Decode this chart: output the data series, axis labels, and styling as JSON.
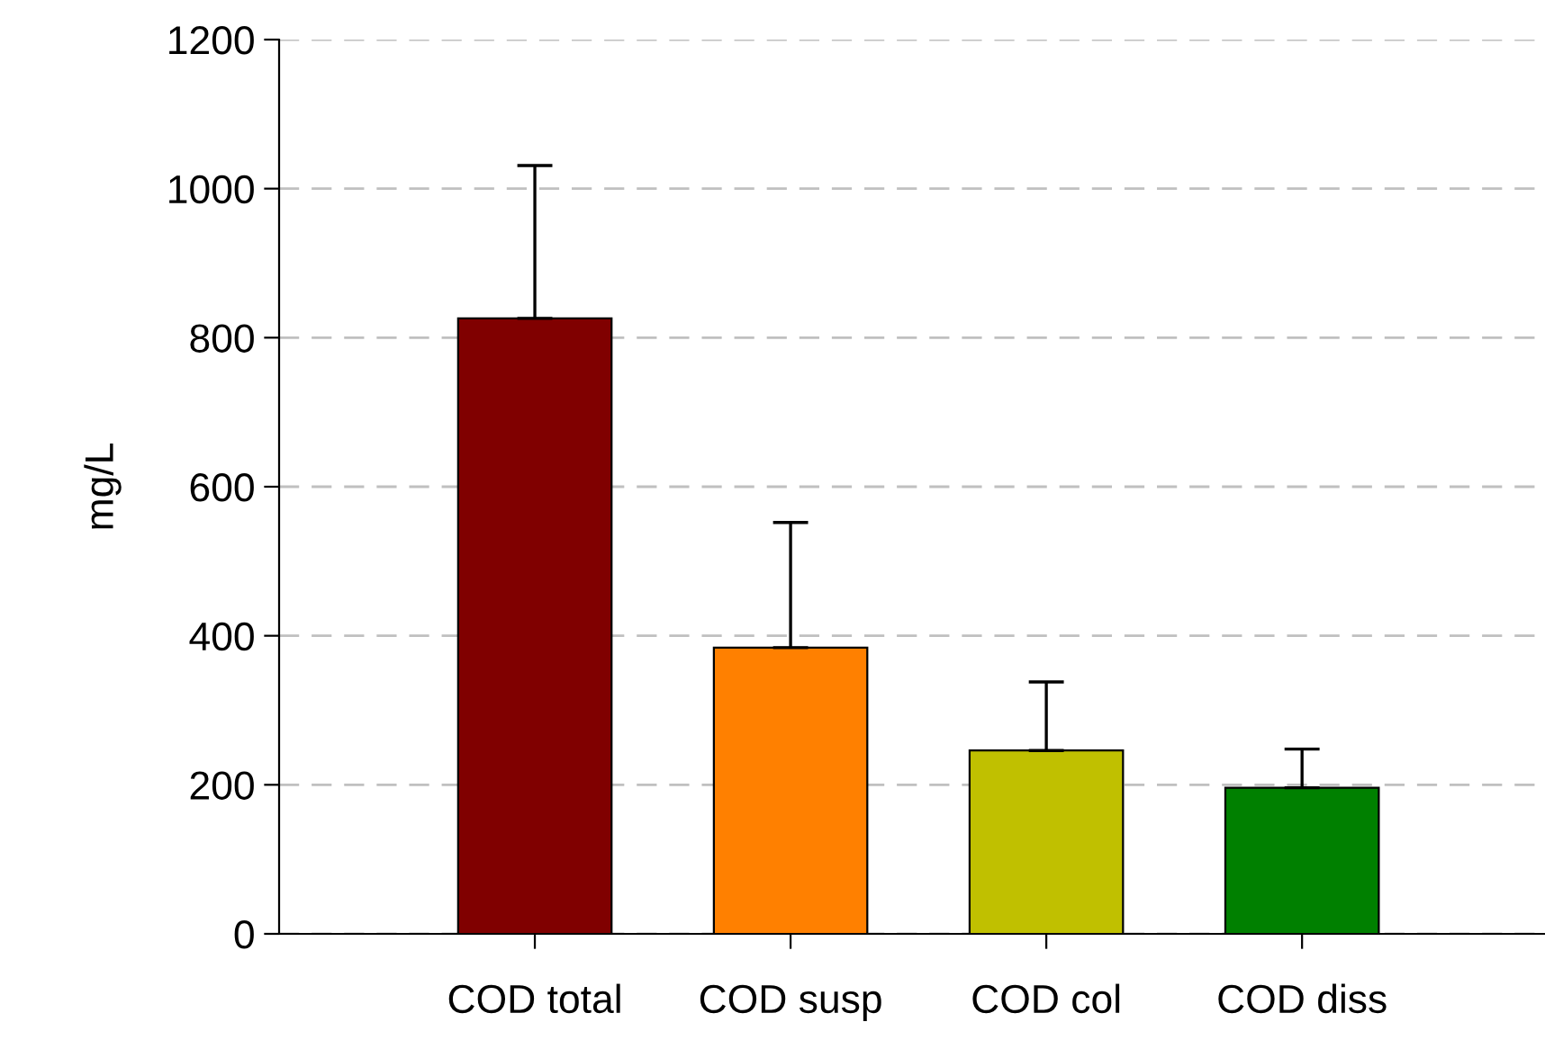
{
  "chart_data": {
    "type": "bar",
    "ylabel": "mg/L",
    "categories": [
      "COD total",
      "COD susp",
      "COD col",
      "COD diss"
    ],
    "values": [
      826,
      384,
      246,
      196
    ],
    "colors": [
      "#800000",
      "#ff8000",
      "#c0c000",
      "#008000"
    ],
    "errors": [
      [
        826,
        1031
      ],
      [
        384,
        552
      ],
      [
        246,
        338
      ],
      [
        196,
        248
      ]
    ],
    "ylim": [
      0,
      1200
    ],
    "yticks": [
      0,
      200,
      400,
      600,
      800,
      1000,
      1200
    ],
    "grid": "y"
  }
}
